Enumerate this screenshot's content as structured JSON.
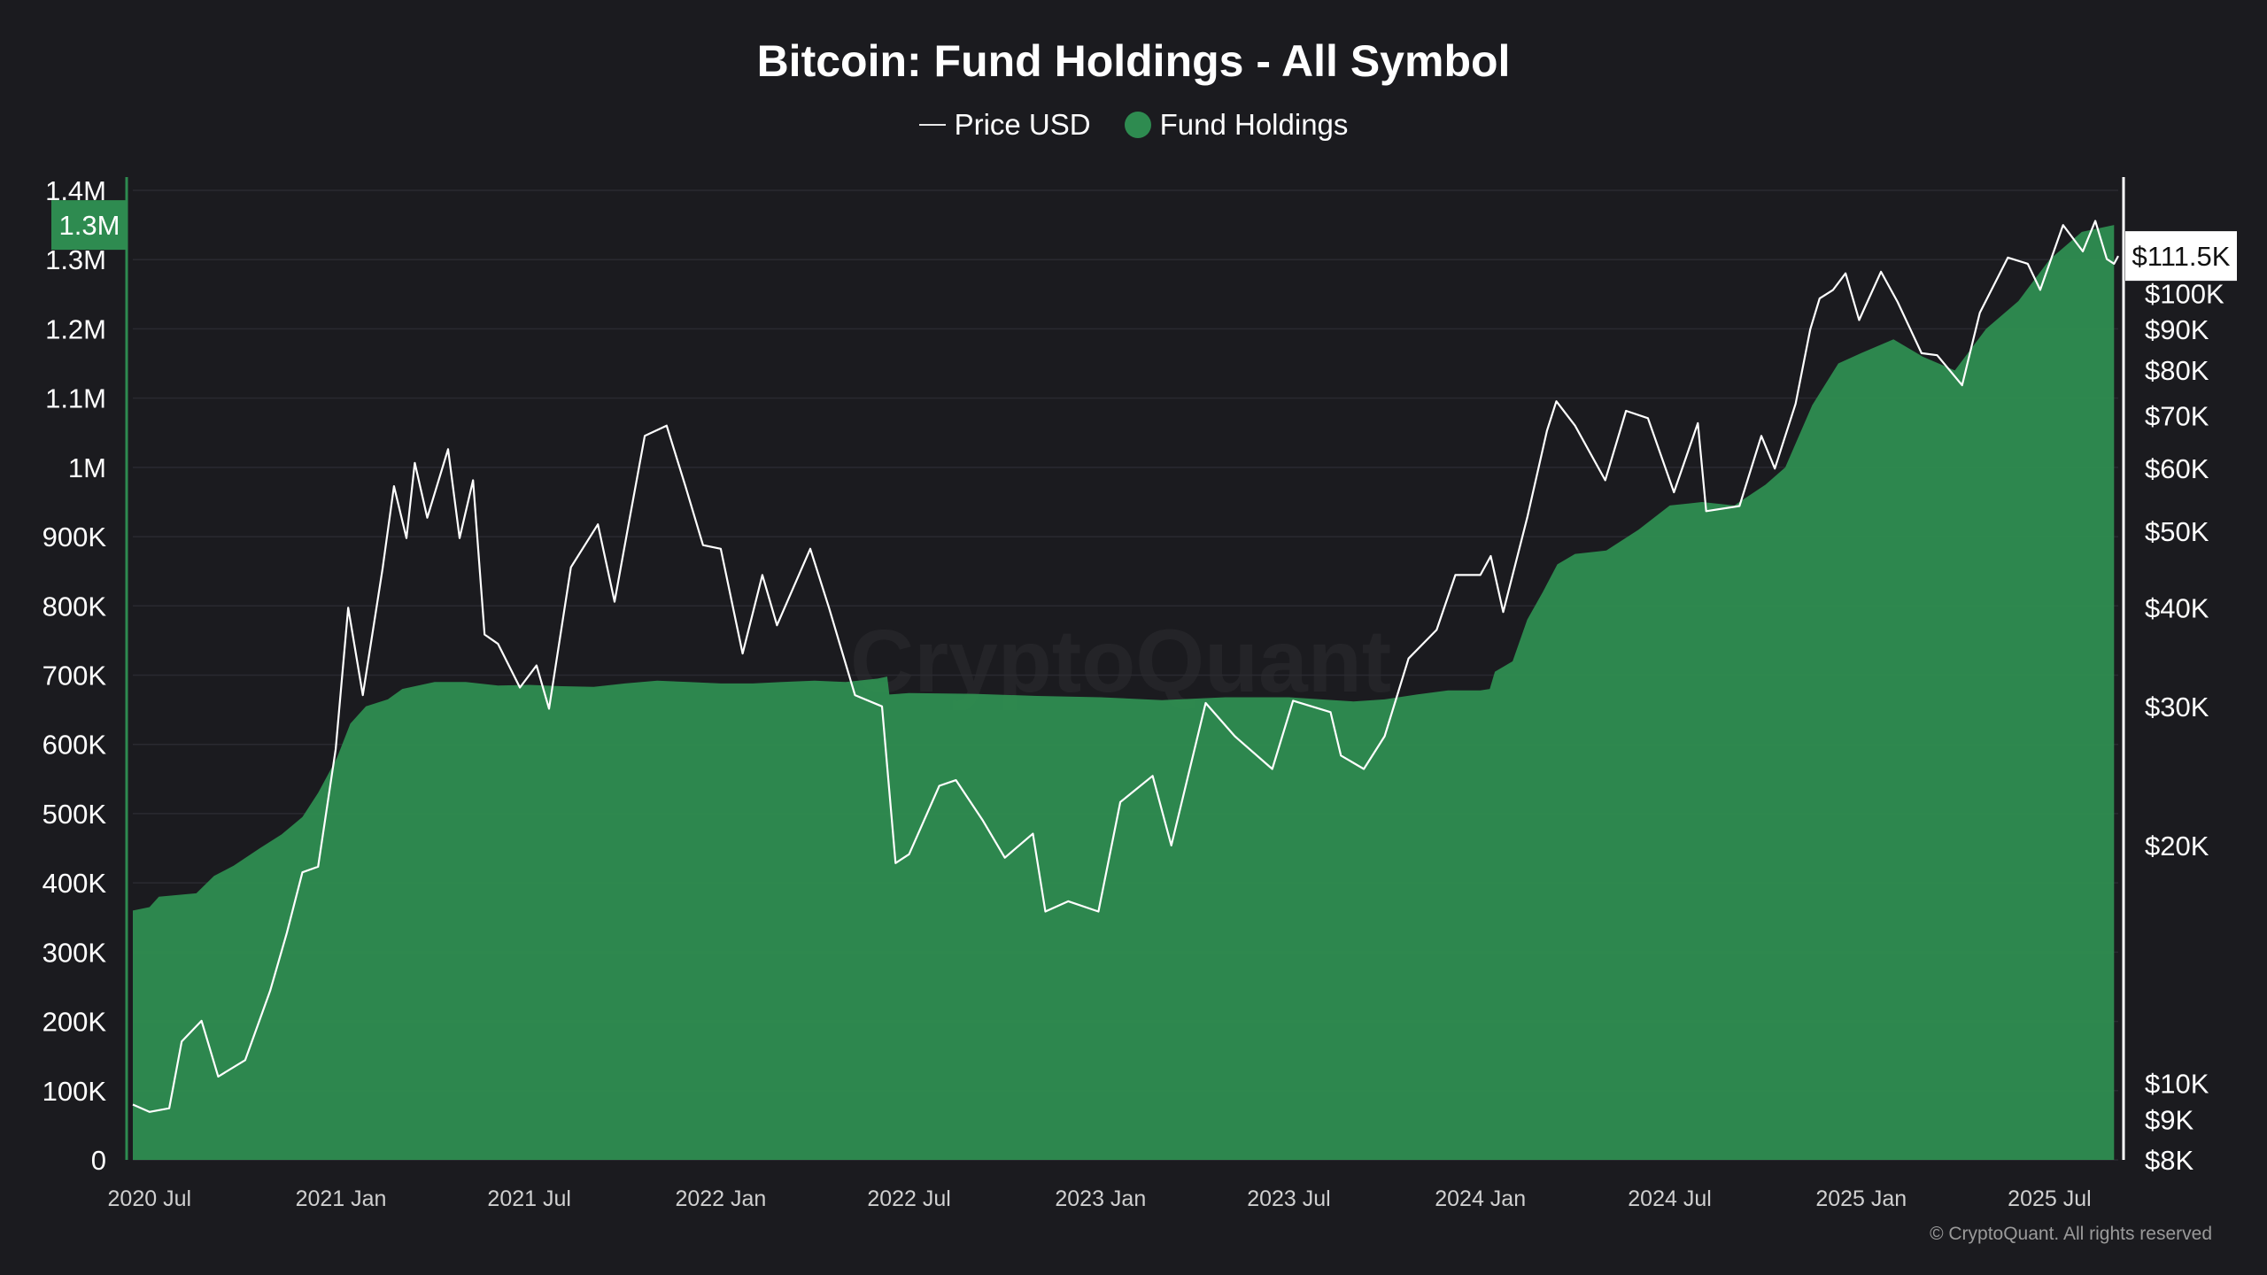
{
  "chart_title": "Bitcoin: Fund Holdings - All Symbol",
  "legend": [
    {
      "label": "Price USD",
      "marker": "line"
    },
    {
      "label": "Fund Holdings",
      "marker": "dot"
    }
  ],
  "watermark": "CryptoQuant",
  "copyright": "© CryptoQuant. All rights reserved",
  "colors": {
    "background": "#1b1b1f",
    "holdings_fill": "#2e8b50",
    "price_line": "#ffffff",
    "grid": "#2a2a30",
    "text": "#ffffff",
    "axis_text": "#d0d0d0"
  },
  "chart_data": {
    "type": "area",
    "title": "Bitcoin: Fund Holdings - All Symbol",
    "x_range": [
      "2020-06-15",
      "2025-09-05"
    ],
    "x_ticks": [
      {
        "date": "2020-07-01",
        "label": "2020 Jul"
      },
      {
        "date": "2021-01-01",
        "label": "2021 Jan"
      },
      {
        "date": "2021-07-01",
        "label": "2021 Jul"
      },
      {
        "date": "2022-01-01",
        "label": "2022 Jan"
      },
      {
        "date": "2022-07-01",
        "label": "2022 Jul"
      },
      {
        "date": "2023-01-01",
        "label": "2023 Jan"
      },
      {
        "date": "2023-07-01",
        "label": "2023 Jul"
      },
      {
        "date": "2024-01-01",
        "label": "2024 Jan"
      },
      {
        "date": "2024-07-01",
        "label": "2024 Jul"
      },
      {
        "date": "2025-01-01",
        "label": "2025 Jan"
      },
      {
        "date": "2025-07-01",
        "label": "2025 Jul"
      }
    ],
    "left_axis": {
      "scale": "linear",
      "range": [
        0,
        1400000
      ],
      "ticks": [
        {
          "value": 0,
          "label": "0"
        },
        {
          "value": 100000,
          "label": "100K"
        },
        {
          "value": 200000,
          "label": "200K"
        },
        {
          "value": 300000,
          "label": "300K"
        },
        {
          "value": 400000,
          "label": "400K"
        },
        {
          "value": 500000,
          "label": "500K"
        },
        {
          "value": 600000,
          "label": "600K"
        },
        {
          "value": 700000,
          "label": "700K"
        },
        {
          "value": 800000,
          "label": "800K"
        },
        {
          "value": 900000,
          "label": "900K"
        },
        {
          "value": 1000000,
          "label": "1M"
        },
        {
          "value": 1100000,
          "label": "1.1M"
        },
        {
          "value": 1200000,
          "label": "1.2M"
        },
        {
          "value": 1300000,
          "label": "1.3M"
        },
        {
          "value": 1400000,
          "label": "1.4M"
        }
      ],
      "current_label": "1.3M",
      "current_value": 1350000
    },
    "right_axis": {
      "scale": "log",
      "range": [
        8000,
        135000
      ],
      "ticks": [
        {
          "value": 8000,
          "label": "$8K"
        },
        {
          "value": 9000,
          "label": "$9K"
        },
        {
          "value": 10000,
          "label": "$10K"
        },
        {
          "value": 20000,
          "label": "$20K"
        },
        {
          "value": 30000,
          "label": "$30K"
        },
        {
          "value": 40000,
          "label": "$40K"
        },
        {
          "value": 50000,
          "label": "$50K"
        },
        {
          "value": 60000,
          "label": "$60K"
        },
        {
          "value": 70000,
          "label": "$70K"
        },
        {
          "value": 80000,
          "label": "$80K"
        },
        {
          "value": 90000,
          "label": "$90K"
        },
        {
          "value": 100000,
          "label": "$100K"
        }
      ],
      "current_label": "$111.5K",
      "current_value": 111500
    },
    "grid": true,
    "legend_position": "top-center",
    "series": [
      {
        "name": "Fund Holdings",
        "type": "area",
        "axis": "left",
        "points": [
          [
            "2020-06-15",
            360000
          ],
          [
            "2020-07-01",
            365000
          ],
          [
            "2020-07-10",
            380000
          ],
          [
            "2020-08-15",
            385000
          ],
          [
            "2020-09-01",
            410000
          ],
          [
            "2020-09-20",
            425000
          ],
          [
            "2020-10-15",
            450000
          ],
          [
            "2020-11-05",
            470000
          ],
          [
            "2020-11-25",
            495000
          ],
          [
            "2020-12-10",
            530000
          ],
          [
            "2020-12-28",
            580000
          ],
          [
            "2021-01-10",
            630000
          ],
          [
            "2021-01-25",
            655000
          ],
          [
            "2021-02-15",
            665000
          ],
          [
            "2021-03-01",
            680000
          ],
          [
            "2021-04-01",
            690000
          ],
          [
            "2021-05-01",
            690000
          ],
          [
            "2021-06-01",
            685000
          ],
          [
            "2021-07-01",
            686000
          ],
          [
            "2021-08-01",
            684000
          ],
          [
            "2021-09-01",
            683000
          ],
          [
            "2021-10-01",
            688000
          ],
          [
            "2021-11-01",
            692000
          ],
          [
            "2021-12-01",
            690000
          ],
          [
            "2022-01-01",
            688000
          ],
          [
            "2022-02-01",
            688000
          ],
          [
            "2022-03-01",
            690000
          ],
          [
            "2022-04-01",
            692000
          ],
          [
            "2022-05-01",
            690000
          ],
          [
            "2022-06-01",
            695000
          ],
          [
            "2022-06-10",
            698000
          ],
          [
            "2022-06-12",
            672000
          ],
          [
            "2022-07-01",
            674000
          ],
          [
            "2022-09-01",
            673000
          ],
          [
            "2022-11-01",
            670000
          ],
          [
            "2023-01-01",
            668000
          ],
          [
            "2023-03-01",
            664000
          ],
          [
            "2023-05-01",
            668000
          ],
          [
            "2023-07-01",
            668000
          ],
          [
            "2023-08-01",
            665000
          ],
          [
            "2023-09-01",
            662000
          ],
          [
            "2023-10-01",
            665000
          ],
          [
            "2023-11-01",
            672000
          ],
          [
            "2023-12-01",
            678000
          ],
          [
            "2024-01-01",
            678000
          ],
          [
            "2024-01-10",
            680000
          ],
          [
            "2024-01-15",
            705000
          ],
          [
            "2024-02-01",
            720000
          ],
          [
            "2024-02-15",
            780000
          ],
          [
            "2024-03-01",
            820000
          ],
          [
            "2024-03-15",
            860000
          ],
          [
            "2024-04-01",
            875000
          ],
          [
            "2024-05-01",
            880000
          ],
          [
            "2024-06-01",
            910000
          ],
          [
            "2024-07-01",
            945000
          ],
          [
            "2024-08-01",
            950000
          ],
          [
            "2024-09-01",
            945000
          ],
          [
            "2024-10-01",
            975000
          ],
          [
            "2024-10-20",
            1000000
          ],
          [
            "2024-11-15",
            1090000
          ],
          [
            "2024-12-10",
            1150000
          ],
          [
            "2025-01-01",
            1165000
          ],
          [
            "2025-02-01",
            1185000
          ],
          [
            "2025-03-01",
            1160000
          ],
          [
            "2025-04-01",
            1140000
          ],
          [
            "2025-05-01",
            1200000
          ],
          [
            "2025-06-01",
            1240000
          ],
          [
            "2025-07-01",
            1300000
          ],
          [
            "2025-08-01",
            1340000
          ],
          [
            "2025-09-01",
            1350000
          ]
        ]
      },
      {
        "name": "Price USD",
        "type": "line",
        "axis": "right",
        "points": [
          [
            "2020-06-15",
            9400
          ],
          [
            "2020-07-01",
            9200
          ],
          [
            "2020-07-20",
            9300
          ],
          [
            "2020-08-01",
            11300
          ],
          [
            "2020-08-20",
            12000
          ],
          [
            "2020-09-05",
            10200
          ],
          [
            "2020-10-01",
            10700
          ],
          [
            "2020-10-25",
            13100
          ],
          [
            "2020-11-10",
            15500
          ],
          [
            "2020-11-25",
            18500
          ],
          [
            "2020-12-10",
            18800
          ],
          [
            "2020-12-27",
            26500
          ],
          [
            "2021-01-08",
            40000
          ],
          [
            "2021-01-22",
            31000
          ],
          [
            "2021-02-10",
            44800
          ],
          [
            "2021-02-21",
            57000
          ],
          [
            "2021-03-05",
            49000
          ],
          [
            "2021-03-13",
            61000
          ],
          [
            "2021-03-25",
            52000
          ],
          [
            "2021-04-14",
            63500
          ],
          [
            "2021-04-25",
            49000
          ],
          [
            "2021-05-08",
            58000
          ],
          [
            "2021-05-19",
            37000
          ],
          [
            "2021-06-01",
            36000
          ],
          [
            "2021-06-22",
            31700
          ],
          [
            "2021-07-08",
            33800
          ],
          [
            "2021-07-20",
            29800
          ],
          [
            "2021-08-10",
            45000
          ],
          [
            "2021-09-05",
            51000
          ],
          [
            "2021-09-21",
            40700
          ],
          [
            "2021-10-05",
            51500
          ],
          [
            "2021-10-20",
            66000
          ],
          [
            "2021-11-10",
            68000
          ],
          [
            "2021-11-28",
            57000
          ],
          [
            "2021-12-15",
            48000
          ],
          [
            "2022-01-01",
            47500
          ],
          [
            "2022-01-22",
            35000
          ],
          [
            "2022-02-10",
            44000
          ],
          [
            "2022-02-24",
            38000
          ],
          [
            "2022-03-28",
            47500
          ],
          [
            "2022-04-15",
            40000
          ],
          [
            "2022-05-10",
            31000
          ],
          [
            "2022-06-05",
            30000
          ],
          [
            "2022-06-18",
            19000
          ],
          [
            "2022-07-01",
            19500
          ],
          [
            "2022-07-30",
            23800
          ],
          [
            "2022-08-15",
            24200
          ],
          [
            "2022-09-10",
            21500
          ],
          [
            "2022-10-01",
            19300
          ],
          [
            "2022-10-28",
            20700
          ],
          [
            "2022-11-09",
            16500
          ],
          [
            "2022-12-01",
            17000
          ],
          [
            "2022-12-30",
            16500
          ],
          [
            "2023-01-20",
            22700
          ],
          [
            "2023-02-20",
            24500
          ],
          [
            "2023-03-10",
            20000
          ],
          [
            "2023-04-12",
            30300
          ],
          [
            "2023-05-10",
            27500
          ],
          [
            "2023-06-15",
            25000
          ],
          [
            "2023-07-05",
            30500
          ],
          [
            "2023-08-10",
            29500
          ],
          [
            "2023-08-20",
            26000
          ],
          [
            "2023-09-11",
            25000
          ],
          [
            "2023-10-01",
            27500
          ],
          [
            "2023-10-24",
            34500
          ],
          [
            "2023-11-20",
            37500
          ],
          [
            "2023-12-08",
            44000
          ],
          [
            "2024-01-01",
            44000
          ],
          [
            "2024-01-11",
            46500
          ],
          [
            "2024-01-23",
            39500
          ],
          [
            "2024-02-15",
            52000
          ],
          [
            "2024-03-05",
            67000
          ],
          [
            "2024-03-14",
            73000
          ],
          [
            "2024-04-01",
            68000
          ],
          [
            "2024-04-30",
            58000
          ],
          [
            "2024-05-20",
            71000
          ],
          [
            "2024-06-10",
            69500
          ],
          [
            "2024-07-05",
            56000
          ],
          [
            "2024-07-28",
            68500
          ],
          [
            "2024-08-05",
            53000
          ],
          [
            "2024-09-06",
            53800
          ],
          [
            "2024-09-27",
            66000
          ],
          [
            "2024-10-10",
            60000
          ],
          [
            "2024-10-30",
            72500
          ],
          [
            "2024-11-13",
            90000
          ],
          [
            "2024-11-22",
            98500
          ],
          [
            "2024-12-05",
            101000
          ],
          [
            "2024-12-17",
            106000
          ],
          [
            "2024-12-30",
            92500
          ],
          [
            "2025-01-20",
            106500
          ],
          [
            "2025-02-05",
            97500
          ],
          [
            "2025-02-28",
            84000
          ],
          [
            "2025-03-15",
            83500
          ],
          [
            "2025-04-08",
            76500
          ],
          [
            "2025-04-25",
            94500
          ],
          [
            "2025-05-22",
            111000
          ],
          [
            "2025-06-10",
            109000
          ],
          [
            "2025-06-22",
            101000
          ],
          [
            "2025-07-14",
            122000
          ],
          [
            "2025-08-02",
            113000
          ],
          [
            "2025-08-14",
            123500
          ],
          [
            "2025-08-25",
            110500
          ],
          [
            "2025-09-01",
            109000
          ],
          [
            "2025-09-05",
            111500
          ]
        ]
      }
    ]
  }
}
